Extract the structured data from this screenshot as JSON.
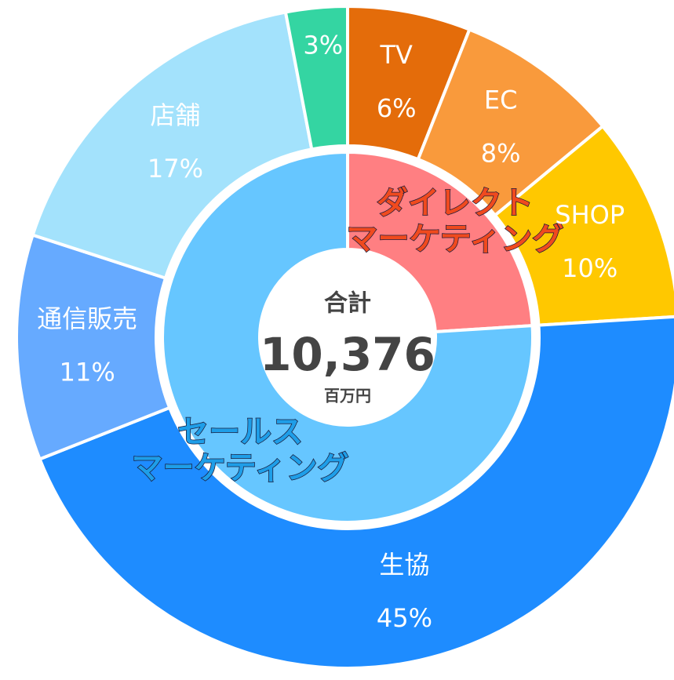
{
  "chart_data": {
    "type": "nested-donut",
    "rings": [
      {
        "categories": [
          "ダイレクト\nマーケティング",
          "セールス\nマーケティング"
        ],
        "values": [
          24,
          76
        ],
        "colors": [
          "#ff7f82",
          "#66c6ff"
        ],
        "text_colors": [
          "#f04a1e",
          "#1e9ee8"
        ]
      },
      {
        "categories": [
          "TV",
          "EC",
          "SHOP",
          "生協",
          "通信販売",
          "店舗",
          null
        ],
        "values": [
          6,
          8,
          10,
          45,
          11,
          17,
          3
        ],
        "value_labels": [
          "6%",
          "8%",
          "10%",
          "45%",
          "11%",
          "17%",
          "3%"
        ],
        "colors": [
          "#e46c0a",
          "#f99a3c",
          "#ffc800",
          "#1e8cff",
          "#66aaff",
          "#a3e2fc",
          "#34d5a2"
        ]
      }
    ],
    "center": {
      "title": "合計",
      "total": {
        "value": 10376,
        "label": "10,376"
      },
      "unit": "百万円"
    }
  }
}
